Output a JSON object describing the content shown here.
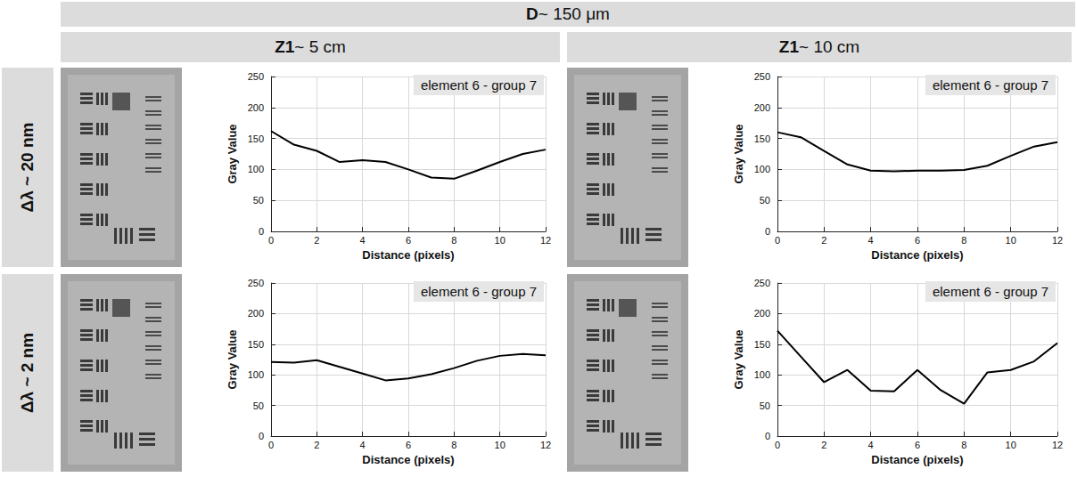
{
  "header": {
    "title": "D ~ 150 μm",
    "columns": [
      "Z1 ~ 5 cm",
      "Z1 ~ 10 cm"
    ],
    "rows": [
      "Δλ ~ 20 nm",
      "Δλ ~ 2 nm"
    ]
  },
  "chart_data": [
    {
      "type": "line",
      "title": "element 6 - group 7",
      "x_label": "Distance (pixels)",
      "y_label": "Gray Value",
      "x": [
        0,
        1,
        2,
        3,
        4,
        5,
        6,
        7,
        8,
        9,
        10,
        11,
        12
      ],
      "values": [
        162,
        140,
        130,
        112,
        115,
        112,
        100,
        87,
        85,
        98,
        112,
        125,
        132
      ],
      "color": "#000000",
      "xlim": [
        0,
        12
      ],
      "xticks": [
        0,
        2,
        4,
        6,
        8,
        10,
        12
      ],
      "ylim": [
        0,
        250
      ],
      "yticks": [
        0,
        50,
        100,
        150,
        200,
        250
      ],
      "grid": true
    },
    {
      "type": "line",
      "title": "element 6 - group 7",
      "x_label": "Distance (pixels)",
      "y_label": "Gray Value",
      "x": [
        0,
        1,
        2,
        3,
        4,
        5,
        6,
        7,
        8,
        9,
        10,
        11,
        12
      ],
      "values": [
        160,
        152,
        130,
        108,
        98,
        97,
        98,
        98,
        99,
        106,
        122,
        137,
        144
      ],
      "color": "#000000",
      "xlim": [
        0,
        12
      ],
      "xticks": [
        0,
        2,
        4,
        6,
        8,
        10,
        12
      ],
      "ylim": [
        0,
        250
      ],
      "yticks": [
        0,
        50,
        100,
        150,
        200,
        250
      ],
      "grid": true
    },
    {
      "type": "line",
      "title": "element 6 - group 7",
      "x_label": "Distance (pixels)",
      "y_label": "Gray Value",
      "x": [
        0,
        1,
        2,
        3,
        4,
        5,
        6,
        7,
        8,
        9,
        10,
        11,
        12
      ],
      "values": [
        121,
        120,
        124,
        113,
        102,
        91,
        94,
        101,
        111,
        123,
        131,
        134,
        132
      ],
      "color": "#000000",
      "xlim": [
        0,
        12
      ],
      "xticks": [
        0,
        2,
        4,
        6,
        8,
        10,
        12
      ],
      "ylim": [
        0,
        250
      ],
      "yticks": [
        0,
        50,
        100,
        150,
        200,
        250
      ],
      "grid": true
    },
    {
      "type": "line",
      "title": "element 6 - group 7",
      "x_label": "Distance (pixels)",
      "y_label": "Gray Value",
      "x": [
        0,
        1,
        2,
        3,
        4,
        5,
        6,
        7,
        8,
        9,
        10,
        11,
        12
      ],
      "values": [
        172,
        130,
        88,
        108,
        74,
        73,
        108,
        75,
        53,
        104,
        108,
        122,
        152
      ],
      "color": "#000000",
      "xlim": [
        0,
        12
      ],
      "xticks": [
        0,
        2,
        4,
        6,
        8,
        10,
        12
      ],
      "ylim": [
        0,
        250
      ],
      "yticks": [
        0,
        50,
        100,
        150,
        200,
        250
      ],
      "grid": true
    }
  ]
}
